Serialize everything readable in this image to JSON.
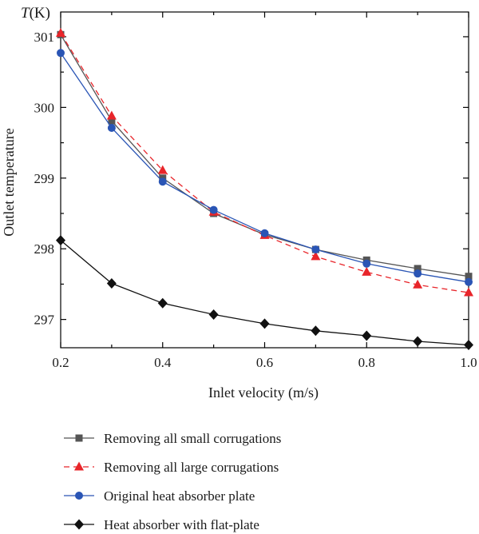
{
  "chart_data": {
    "type": "line",
    "unit_label_prefix": "T",
    "unit_label_suffix": "(K)",
    "xlabel": "Inlet velocity (m/s)",
    "ylabel": "Outlet temperature",
    "xlim": [
      0.2,
      1.0
    ],
    "ylim": [
      296.6,
      301.35
    ],
    "x_ticks": [
      0.2,
      0.4,
      0.6,
      0.8,
      1.0
    ],
    "x_tick_labels": [
      "0.2",
      "0.4",
      "0.6",
      "0.8",
      "1.0"
    ],
    "y_ticks": [
      297,
      298,
      299,
      300,
      301
    ],
    "y_tick_labels": [
      "297",
      "298",
      "299",
      "300",
      "301"
    ],
    "grid": false,
    "legend_position": "below",
    "x": [
      0.2,
      0.3,
      0.4,
      0.5,
      0.6,
      0.7,
      0.8,
      0.9,
      1.0
    ],
    "series": [
      {
        "name": "Removing all small corrugations",
        "color": "#555555",
        "marker": "square",
        "dash": "solid",
        "values": [
          301.03,
          299.81,
          299.0,
          298.5,
          298.2,
          297.99,
          297.84,
          297.72,
          297.61
        ]
      },
      {
        "name": "Removing all large corrugations",
        "color": "#e8252a",
        "marker": "triangle",
        "dash": "dashed",
        "values": [
          301.05,
          299.88,
          299.11,
          298.52,
          298.19,
          297.89,
          297.67,
          297.49,
          297.38
        ]
      },
      {
        "name": "Original heat absorber plate",
        "color": "#2a55b5",
        "marker": "circle",
        "dash": "solid",
        "values": [
          300.77,
          299.71,
          298.95,
          298.55,
          298.22,
          297.99,
          297.79,
          297.65,
          297.53
        ]
      },
      {
        "name": "Heat absorber with flat-plate",
        "color": "#111111",
        "marker": "diamond",
        "dash": "solid",
        "values": [
          298.12,
          297.51,
          297.23,
          297.07,
          296.94,
          296.84,
          296.77,
          296.69,
          296.64
        ]
      }
    ]
  }
}
